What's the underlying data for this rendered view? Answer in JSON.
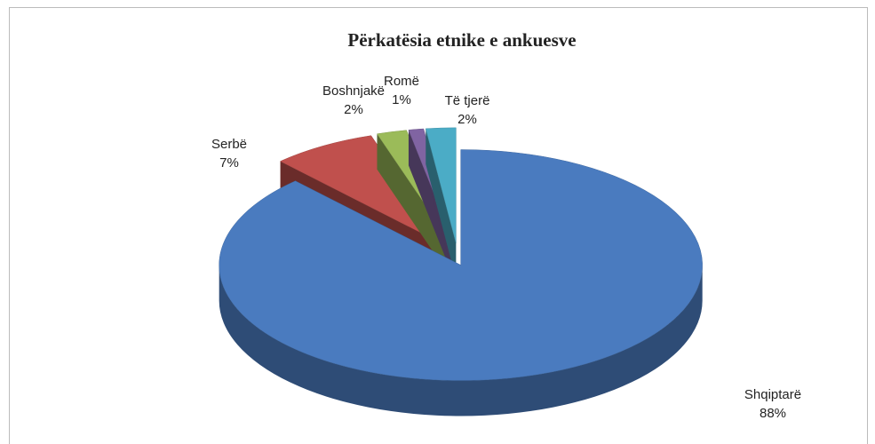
{
  "chart_data": {
    "type": "pie",
    "title": "Përkatësia etnike e ankuesve",
    "categories": [
      "Shqiptarë",
      "Serbë",
      "Boshnjakë",
      "Romë",
      "Të tjerë"
    ],
    "values": [
      88,
      7,
      2,
      1,
      2
    ],
    "value_labels": [
      "88%",
      "7%",
      "2%",
      "1%",
      "2%"
    ],
    "colors": [
      "#4a7bbf",
      "#c0504d",
      "#9bbb59",
      "#8064a2",
      "#4bacc6"
    ]
  }
}
